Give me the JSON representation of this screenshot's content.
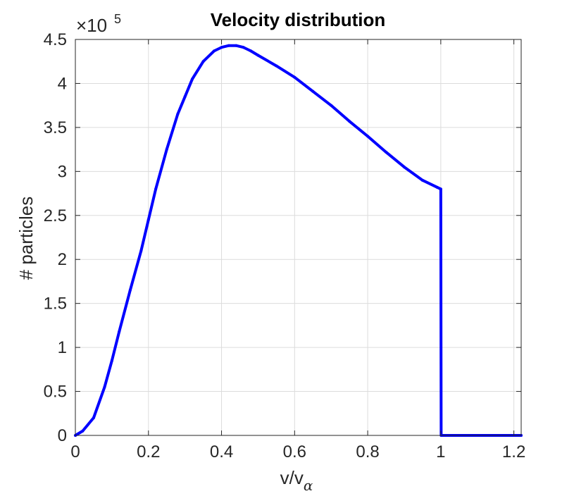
{
  "chart_data": {
    "type": "line",
    "title": "Velocity distribution",
    "xlabel_main": "v/v",
    "xlabel_sub": "α",
    "ylabel": "# particles",
    "y_multiplier_base": "×10",
    "y_multiplier_exp": "5",
    "xlim": [
      0,
      1.22
    ],
    "ylim": [
      0,
      450000
    ],
    "xticks": [
      0,
      0.2,
      0.4,
      0.6,
      0.8,
      1,
      1.2
    ],
    "xtick_labels": [
      "0",
      "0.2",
      "0.4",
      "0.6",
      "0.8",
      "1",
      "1.2"
    ],
    "yticks": [
      0,
      50000,
      100000,
      150000,
      200000,
      250000,
      300000,
      350000,
      400000,
      450000
    ],
    "ytick_labels": [
      "0",
      "0.5",
      "1",
      "1.5",
      "2",
      "2.5",
      "3",
      "3.5",
      "4",
      "4.5"
    ],
    "grid": true,
    "line_color": "#0000ff",
    "series": [
      {
        "x": [
          0,
          0.02,
          0.05,
          0.08,
          0.1,
          0.12,
          0.15,
          0.18,
          0.2,
          0.22,
          0.25,
          0.28,
          0.3,
          0.32,
          0.35,
          0.38,
          0.4,
          0.42,
          0.44,
          0.46,
          0.48,
          0.5,
          0.55,
          0.6,
          0.65,
          0.7,
          0.75,
          0.8,
          0.85,
          0.9,
          0.95,
          0.99,
          1.0,
          1.001,
          1.22
        ],
        "y": [
          0,
          5000,
          20000,
          55000,
          85000,
          118000,
          165000,
          210000,
          245000,
          280000,
          325000,
          365000,
          385000,
          405000,
          425000,
          437000,
          441000,
          443000,
          443000,
          441000,
          437000,
          432000,
          420000,
          407000,
          391000,
          375000,
          357000,
          340000,
          322000,
          305000,
          290000,
          282000,
          280000,
          0,
          0
        ]
      }
    ]
  }
}
